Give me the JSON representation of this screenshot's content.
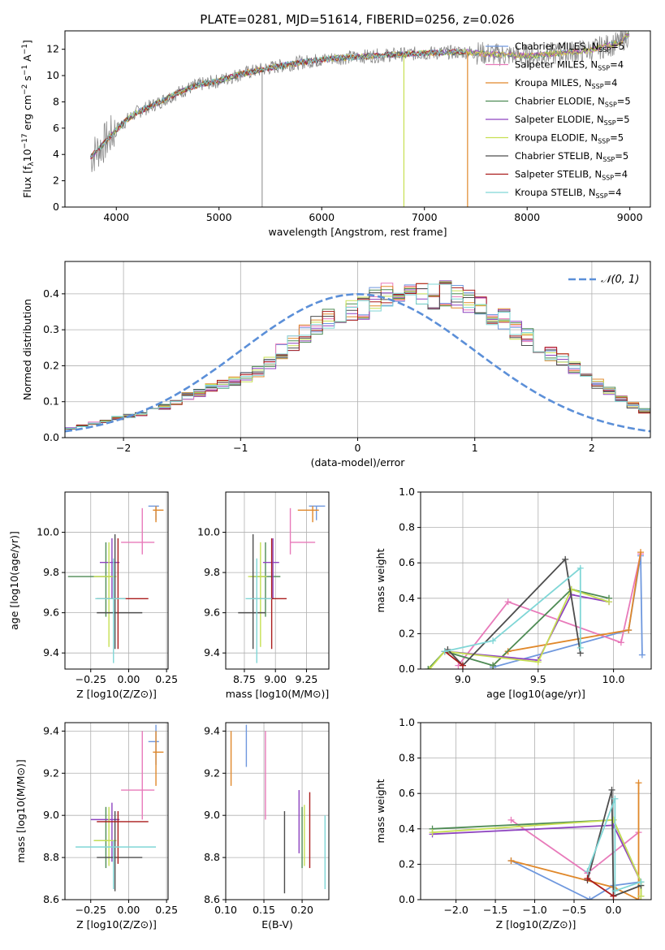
{
  "title": "PLATE=0281, MJD=51614, FIBERID=0256, z=0.026",
  "colors": {
    "Chabrier MILES": "#6f98de",
    "Salpeter MILES": "#e87aba",
    "Kroupa MILES": "#e0882a",
    "Chabrier ELODIE": "#4e8b54",
    "Salpeter ELODIE": "#8e44c0",
    "Kroupa ELODIE": "#c7df52",
    "Chabrier STELIB": "#4d4d4d",
    "Salpeter STELIB": "#aa1c1c",
    "Kroupa STELIB": "#7fd6d6"
  },
  "chart_data": [
    {
      "type": "line",
      "panel": "spectrum",
      "xlabel": "wavelength [Angstrom, rest frame]",
      "ylabel": "Flux [f_λ 10^-17 erg cm^-2 s^-1 A^-1]",
      "xlim": [
        3500,
        9200
      ],
      "ylim": [
        0,
        13.4
      ],
      "xticks": [
        "4000",
        "5000",
        "6000",
        "7000",
        "8000",
        "9000"
      ],
      "yticks": [
        "0",
        "2",
        "4",
        "6",
        "8",
        "10",
        "12"
      ],
      "legend": "top-right",
      "legend_entries": [
        {
          "name": "Chabrier MILES",
          "nssp": "=5"
        },
        {
          "name": "Salpeter MILES",
          "nssp": "=4"
        },
        {
          "name": "Kroupa MILES",
          "nssp": "=4"
        },
        {
          "name": "Chabrier ELODIE",
          "nssp": "=5"
        },
        {
          "name": "Salpeter ELODIE",
          "nssp": "=5"
        },
        {
          "name": "Kroupa ELODIE",
          "nssp": "=5"
        },
        {
          "name": "Chabrier STELIB",
          "nssp": "=5"
        },
        {
          "name": "Salpeter STELIB",
          "nssp": "=4"
        },
        {
          "name": "Kroupa STELIB",
          "nssp": "=4"
        }
      ],
      "nssp_label": "N",
      "nssp_sub": "SSP",
      "continuum": [
        [
          3750,
          3.8
        ],
        [
          3900,
          5.0
        ],
        [
          4000,
          5.9
        ],
        [
          4100,
          6.6
        ],
        [
          4200,
          7.2
        ],
        [
          4400,
          7.9
        ],
        [
          4600,
          8.7
        ],
        [
          4800,
          9.3
        ],
        [
          5000,
          9.6
        ],
        [
          5200,
          10.1
        ],
        [
          5500,
          10.6
        ],
        [
          5800,
          11.0
        ],
        [
          6100,
          11.3
        ],
        [
          6500,
          11.5
        ],
        [
          7000,
          11.7
        ],
        [
          7400,
          11.8
        ],
        [
          7700,
          11.6
        ],
        [
          8000,
          11.5
        ],
        [
          8300,
          11.7
        ],
        [
          8600,
          11.9
        ],
        [
          8900,
          12.5
        ],
        [
          9000,
          13.2
        ]
      ]
    },
    {
      "type": "histogram",
      "panel": "residuals",
      "xlabel": "(data-model)/error",
      "ylabel": "Normed distribution",
      "xlim": [
        -2.5,
        2.5
      ],
      "ylim": [
        0,
        0.49
      ],
      "xticks": [
        "−2",
        "−1",
        "0",
        "1",
        "2"
      ],
      "yticks": [
        "0.0",
        "0.1",
        "0.2",
        "0.3",
        "0.4"
      ],
      "legend": "top-right",
      "legend_label": "𝒩(0, 1)",
      "bin_width": 0.1,
      "bin_start": -2.5,
      "base_values": [
        0.026,
        0.033,
        0.04,
        0.045,
        0.055,
        0.06,
        0.065,
        0.075,
        0.085,
        0.1,
        0.115,
        0.125,
        0.14,
        0.148,
        0.158,
        0.17,
        0.185,
        0.21,
        0.24,
        0.26,
        0.29,
        0.31,
        0.33,
        0.345,
        0.35,
        0.36,
        0.385,
        0.395,
        0.39,
        0.4,
        0.395,
        0.392,
        0.4,
        0.395,
        0.38,
        0.36,
        0.34,
        0.33,
        0.3,
        0.28,
        0.255,
        0.235,
        0.215,
        0.195,
        0.17,
        0.15,
        0.13,
        0.11,
        0.09,
        0.075,
        0.07,
        0.065,
        0.055,
        0.05,
        0.042,
        0.035
      ],
      "gaussian": "N(0,1) pdf"
    },
    {
      "type": "scatter",
      "panel": "age-vs-Z",
      "xlabel": "Z [log10(Z/Z⊙)]",
      "ylabel": "age  [log10(age/yr)]",
      "xlim": [
        -0.42,
        0.26
      ],
      "ylim": [
        9.32,
        10.2
      ],
      "xticks": [
        "−0.25",
        "0.00",
        "0.25"
      ],
      "yticks": [
        "9.4",
        "9.6",
        "9.8",
        "10.0"
      ],
      "points": [
        {
          "model": "Chabrier MILES",
          "x": 0.18,
          "xerr": [
            0.05,
            0.02
          ],
          "y": 10.13,
          "yerr": [
            0.07,
            0.0
          ]
        },
        {
          "model": "Salpeter MILES",
          "x": 0.09,
          "xerr": [
            0.14,
            0.08
          ],
          "y": 9.95,
          "yerr": [
            0.06,
            0.17
          ]
        },
        {
          "model": "Kroupa MILES",
          "x": 0.18,
          "xerr": [
            0.02,
            0.05
          ],
          "y": 10.11,
          "yerr": [
            0.06,
            0.02
          ]
        },
        {
          "model": "Chabrier ELODIE",
          "x": -0.15,
          "xerr": [
            0.25,
            0.05
          ],
          "y": 9.78,
          "yerr": [
            0.2,
            0.17
          ]
        },
        {
          "model": "Salpeter ELODIE",
          "x": -0.11,
          "xerr": [
            0.08,
            0.05
          ],
          "y": 9.85,
          "yerr": [
            0.18,
            0.12
          ]
        },
        {
          "model": "Kroupa ELODIE",
          "x": -0.13,
          "xerr": [
            0.1,
            0.05
          ],
          "y": 9.78,
          "yerr": [
            0.35,
            0.17
          ]
        },
        {
          "model": "Chabrier STELIB",
          "x": -0.09,
          "xerr": [
            0.12,
            0.18
          ],
          "y": 9.6,
          "yerr": [
            0.18,
            0.39
          ]
        },
        {
          "model": "Salpeter STELIB",
          "x": -0.07,
          "xerr": [
            0.14,
            0.2
          ],
          "y": 9.67,
          "yerr": [
            0.25,
            0.3
          ]
        },
        {
          "model": "Kroupa STELIB",
          "x": -0.1,
          "xerr": [
            0.12,
            0.08
          ],
          "y": 9.67,
          "yerr": [
            0.32,
            0.2
          ]
        }
      ]
    },
    {
      "type": "scatter",
      "panel": "age-vs-mass",
      "xlabel": "mass [log10(M/M⊙)]",
      "ylabel": "",
      "xlim": [
        8.6,
        9.43
      ],
      "ylim": [
        9.32,
        10.2
      ],
      "xticks": [
        "8.75",
        "9.00",
        "9.25"
      ],
      "yticks": [
        "9.4",
        "9.6",
        "9.8",
        "10.0"
      ],
      "points": [
        {
          "model": "Chabrier MILES",
          "x": 9.33,
          "xerr": [
            0.06,
            0.07
          ],
          "y": 10.13,
          "yerr": [
            0.07,
            0.0
          ]
        },
        {
          "model": "Salpeter MILES",
          "x": 9.12,
          "xerr": [
            0.0,
            0.2
          ],
          "y": 9.95,
          "yerr": [
            0.06,
            0.17
          ]
        },
        {
          "model": "Kroupa MILES",
          "x": 9.3,
          "xerr": [
            0.12,
            0.05
          ],
          "y": 10.11,
          "yerr": [
            0.06,
            0.02
          ]
        },
        {
          "model": "Chabrier ELODIE",
          "x": 8.92,
          "xerr": [
            0.12,
            0.12
          ],
          "y": 9.78,
          "yerr": [
            0.2,
            0.17
          ]
        },
        {
          "model": "Salpeter ELODIE",
          "x": 8.98,
          "xerr": [
            0.08,
            0.05
          ],
          "y": 9.85,
          "yerr": [
            0.18,
            0.12
          ]
        },
        {
          "model": "Kroupa ELODIE",
          "x": 8.88,
          "xerr": [
            0.1,
            0.05
          ],
          "y": 9.78,
          "yerr": [
            0.35,
            0.17
          ]
        },
        {
          "model": "Chabrier STELIB",
          "x": 8.82,
          "xerr": [
            0.12,
            0.1
          ],
          "y": 9.6,
          "yerr": [
            0.18,
            0.39
          ]
        },
        {
          "model": "Salpeter STELIB",
          "x": 8.97,
          "xerr": [
            0.17,
            0.12
          ],
          "y": 9.67,
          "yerr": [
            0.25,
            0.3
          ]
        },
        {
          "model": "Kroupa STELIB",
          "x": 8.85,
          "xerr": [
            0.09,
            0.12
          ],
          "y": 9.67,
          "yerr": [
            0.32,
            0.2
          ]
        }
      ]
    },
    {
      "type": "line",
      "panel": "weight-vs-age",
      "xlabel": "age  [log10(age/yr)]",
      "ylabel": "mass weight",
      "xlim": [
        8.72,
        10.25
      ],
      "ylim": [
        0,
        1.0
      ],
      "xticks": [
        "9.0",
        "9.5",
        "10.0"
      ],
      "yticks": [
        "0.0",
        "0.2",
        "0.4",
        "0.6",
        "0.8",
        "1.0"
      ],
      "series": [
        {
          "model": "Chabrier MILES",
          "x": [
            9.2,
            10.1,
            10.18,
            10.19
          ],
          "y": [
            0.01,
            0.22,
            0.64,
            0.08
          ]
        },
        {
          "model": "Salpeter MILES",
          "x": [
            8.97,
            9.3,
            10.05,
            10.18
          ],
          "y": [
            0.02,
            0.38,
            0.15,
            0.65
          ]
        },
        {
          "model": "Kroupa MILES",
          "x": [
            9.2,
            9.3,
            10.1,
            10.18
          ],
          "y": [
            0.02,
            0.1,
            0.22,
            0.66
          ]
        },
        {
          "model": "Chabrier ELODIE",
          "x": [
            8.77,
            8.88,
            9.2,
            9.72,
            9.97
          ],
          "y": [
            0.0,
            0.1,
            0.02,
            0.45,
            0.4
          ]
        },
        {
          "model": "Salpeter ELODIE",
          "x": [
            8.88,
            9.5,
            9.72,
            9.97
          ],
          "y": [
            0.1,
            0.05,
            0.42,
            0.38
          ]
        },
        {
          "model": "Kroupa ELODIE",
          "x": [
            8.78,
            8.88,
            9.5,
            9.72,
            9.97
          ],
          "y": [
            0.0,
            0.1,
            0.04,
            0.45,
            0.38
          ]
        },
        {
          "model": "Chabrier STELIB",
          "x": [
            8.9,
            9.0,
            9.68,
            9.78
          ],
          "y": [
            0.11,
            0.02,
            0.62,
            0.09
          ]
        },
        {
          "model": "Salpeter STELIB",
          "x": [
            8.88,
            9.0
          ],
          "y": [
            0.1,
            0.02
          ]
        },
        {
          "model": "Kroupa STELIB",
          "x": [
            8.88,
            9.2,
            9.78,
            9.78
          ],
          "y": [
            0.1,
            0.16,
            0.57,
            0.12
          ]
        }
      ]
    },
    {
      "type": "scatter",
      "panel": "mass-vs-Z",
      "xlabel": "Z [log10(Z/Z⊙)]",
      "ylabel": "mass [log10(M/M⊙)]",
      "xlim": [
        -0.42,
        0.26
      ],
      "ylim": [
        8.6,
        9.44
      ],
      "xticks": [
        "−0.25",
        "0.00",
        "0.25"
      ],
      "yticks": [
        "8.6",
        "8.8",
        "9.0",
        "9.2",
        "9.4"
      ],
      "points": [
        {
          "model": "Chabrier MILES",
          "x": 0.18,
          "xerr": [
            0.05,
            0.02
          ],
          "y": 9.35,
          "yerr": [
            0.11,
            0.08
          ]
        },
        {
          "model": "Salpeter MILES",
          "x": 0.09,
          "xerr": [
            0.14,
            0.08
          ],
          "y": 9.12,
          "yerr": [
            0.14,
            0.28
          ]
        },
        {
          "model": "Kroupa MILES",
          "x": 0.18,
          "xerr": [
            0.02,
            0.05
          ],
          "y": 9.3,
          "yerr": [
            0.16,
            0.1
          ]
        },
        {
          "model": "Chabrier ELODIE",
          "x": -0.15,
          "xerr": [
            0.08,
            0.05
          ],
          "y": 8.88,
          "yerr": [
            0.13,
            0.16
          ]
        },
        {
          "model": "Salpeter ELODIE",
          "x": -0.11,
          "xerr": [
            0.14,
            0.05
          ],
          "y": 8.98,
          "yerr": [
            0.2,
            0.08
          ]
        },
        {
          "model": "Kroupa ELODIE",
          "x": -0.13,
          "xerr": [
            0.1,
            0.05
          ],
          "y": 8.88,
          "yerr": [
            0.12,
            0.16
          ]
        },
        {
          "model": "Chabrier STELIB",
          "x": -0.09,
          "xerr": [
            0.12,
            0.18
          ],
          "y": 8.8,
          "yerr": [
            0.16,
            0.22
          ]
        },
        {
          "model": "Salpeter STELIB",
          "x": -0.07,
          "xerr": [
            0.14,
            0.2
          ],
          "y": 8.97,
          "yerr": [
            0.2,
            0.05
          ]
        },
        {
          "model": "Kroupa STELIB",
          "x": -0.1,
          "xerr": [
            0.25,
            0.28
          ],
          "y": 8.85,
          "yerr": [
            0.2,
            0.03
          ]
        }
      ]
    },
    {
      "type": "scatter",
      "panel": "mass-vs-EBV",
      "xlabel": "E(B-V)",
      "ylabel": "",
      "xlim": [
        0.1,
        0.235
      ],
      "ylim": [
        8.6,
        9.44
      ],
      "xticks": [
        "0.10",
        "0.15",
        "0.20"
      ],
      "yticks": [
        "8.6",
        "8.8",
        "9.0",
        "9.2",
        "9.4"
      ],
      "points": [
        {
          "model": "Chabrier MILES",
          "x": 0.127,
          "y": 9.35,
          "yerr": [
            0.12,
            0.08
          ]
        },
        {
          "model": "Salpeter MILES",
          "x": 0.152,
          "y": 9.12,
          "yerr": [
            0.14,
            0.28
          ]
        },
        {
          "model": "Kroupa MILES",
          "x": 0.107,
          "y": 9.3,
          "yerr": [
            0.16,
            0.1
          ]
        },
        {
          "model": "Chabrier ELODIE",
          "x": 0.2,
          "y": 8.88,
          "yerr": [
            0.13,
            0.16
          ]
        },
        {
          "model": "Salpeter ELODIE",
          "x": 0.196,
          "y": 8.98,
          "yerr": [
            0.16,
            0.14
          ]
        },
        {
          "model": "Kroupa ELODIE",
          "x": 0.203,
          "y": 8.88,
          "yerr": [
            0.12,
            0.17
          ]
        },
        {
          "model": "Chabrier STELIB",
          "x": 0.177,
          "y": 8.8,
          "yerr": [
            0.17,
            0.22
          ]
        },
        {
          "model": "Salpeter STELIB",
          "x": 0.21,
          "y": 8.97,
          "yerr": [
            0.22,
            0.14
          ]
        },
        {
          "model": "Kroupa STELIB",
          "x": 0.23,
          "y": 8.85,
          "yerr": [
            0.2,
            0.15
          ]
        }
      ]
    },
    {
      "type": "line",
      "panel": "weight-vs-Z",
      "xlabel": "Z [log10(Z/Z⊙)]",
      "ylabel": "mass weight",
      "xlim": [
        -2.45,
        0.48
      ],
      "ylim": [
        0,
        1.0
      ],
      "xticks": [
        "−2.0",
        "−1.5",
        "−1.0",
        "−0.5",
        "0.0"
      ],
      "yticks": [
        "0.0",
        "0.2",
        "0.4",
        "0.6",
        "0.8",
        "1.0"
      ],
      "series": [
        {
          "model": "Chabrier MILES",
          "x": [
            -1.3,
            -0.3,
            0.0,
            0.35
          ],
          "y": [
            0.22,
            0.0,
            0.08,
            0.1
          ]
        },
        {
          "model": "Salpeter MILES",
          "x": [
            -1.3,
            -0.33,
            0.32
          ],
          "y": [
            0.45,
            0.15,
            0.38
          ]
        },
        {
          "model": "Kroupa MILES",
          "x": [
            -1.3,
            0.0,
            0.32,
            0.32
          ],
          "y": [
            0.22,
            0.07,
            0.0,
            0.66
          ]
        },
        {
          "model": "Chabrier ELODIE",
          "x": [
            -2.3,
            0.0,
            0.35,
            0.35
          ],
          "y": [
            0.4,
            0.45,
            0.1,
            0.02
          ]
        },
        {
          "model": "Salpeter ELODIE",
          "x": [
            -2.3,
            0.0,
            0.35
          ],
          "y": [
            0.37,
            0.42,
            0.1
          ]
        },
        {
          "model": "Kroupa ELODIE",
          "x": [
            -2.3,
            0.0,
            0.35,
            0.35
          ],
          "y": [
            0.38,
            0.45,
            0.1,
            0.02
          ]
        },
        {
          "model": "Chabrier STELIB",
          "x": [
            -0.33,
            -0.02,
            0.0,
            0.35
          ],
          "y": [
            0.11,
            0.62,
            0.02,
            0.08
          ]
        },
        {
          "model": "Salpeter STELIB",
          "x": [
            -0.33,
            0.0
          ],
          "y": [
            0.12,
            0.02
          ]
        },
        {
          "model": "Kroupa STELIB",
          "x": [
            -0.33,
            0.02,
            0.02,
            0.35
          ],
          "y": [
            0.16,
            0.57,
            0.05,
            0.1
          ]
        }
      ]
    }
  ]
}
